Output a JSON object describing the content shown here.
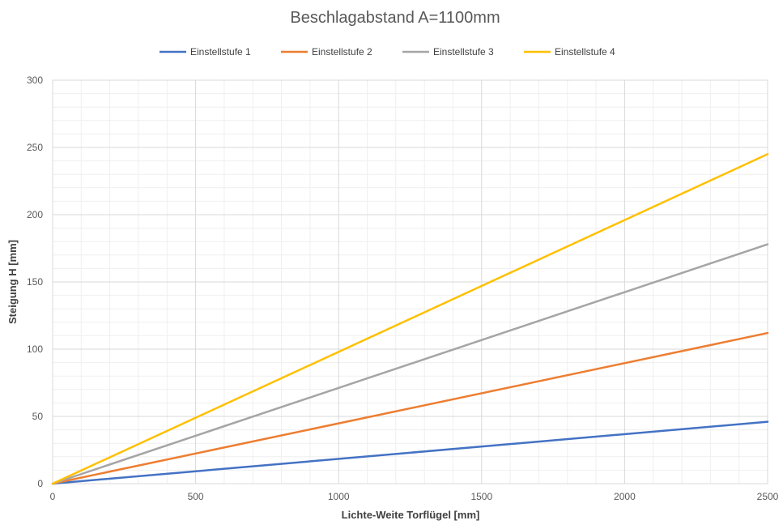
{
  "chart_data": {
    "type": "line",
    "title": "Beschlagabstand A=1100mm",
    "xlabel": "Lichte-Weite Torflügel [mm]",
    "ylabel": "Steigung H [mm]",
    "xlim": [
      0,
      2500
    ],
    "ylim": [
      0,
      300
    ],
    "x_ticks": [
      "0",
      "500",
      "1000",
      "1500",
      "2000",
      "2500"
    ],
    "y_ticks": [
      "0",
      "50",
      "100",
      "150",
      "200",
      "250",
      "300"
    ],
    "grid": true,
    "minor_grid": true,
    "legend_position": "top",
    "series": [
      {
        "name": "Einstellstufe 1",
        "color": "#4472C4",
        "x": [
          0,
          2500
        ],
        "y": [
          0,
          46
        ]
      },
      {
        "name": "Einstellstufe 2",
        "color": "#ED7D31",
        "x": [
          0,
          2500
        ],
        "y": [
          0,
          112
        ]
      },
      {
        "name": "Einstellstufe 3",
        "color": "#A5A5A5",
        "x": [
          0,
          2500
        ],
        "y": [
          0,
          178
        ]
      },
      {
        "name": "Einstellstufe 4",
        "color": "#FFC000",
        "x": [
          0,
          2500
        ],
        "y": [
          0,
          245
        ]
      }
    ]
  }
}
